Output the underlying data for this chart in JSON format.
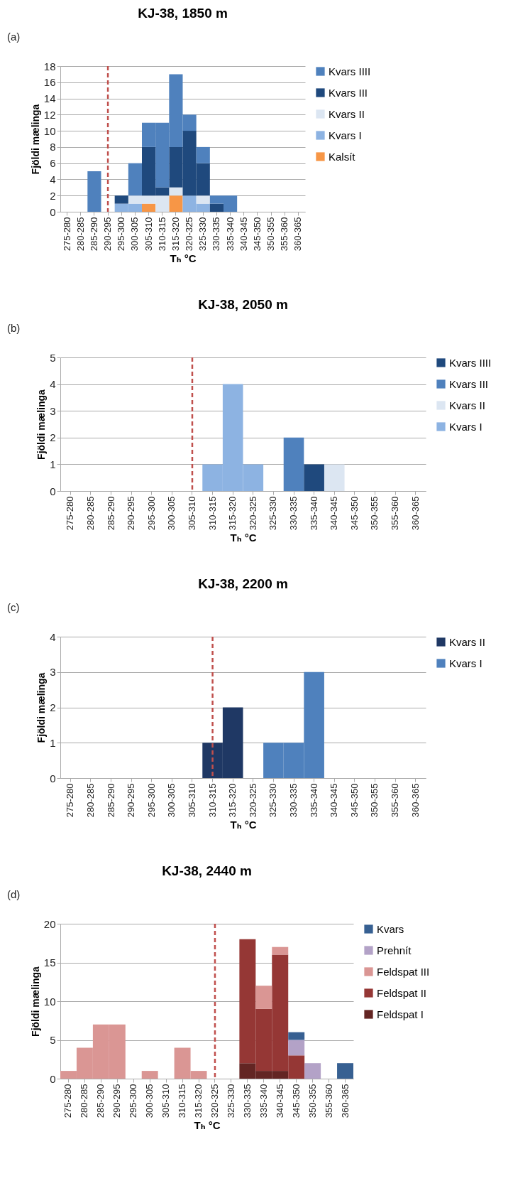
{
  "chart_data": [
    {
      "type": "bar",
      "title": "KJ-38, 1850 m",
      "xlabel": "Tₕ °C",
      "ylabel": "Fjöldi mælinga",
      "annotations": [
        "(a)"
      ],
      "stacked": true,
      "grid": "y",
      "legend": "right",
      "categories": [
        "275-280",
        "280-285",
        "285-290",
        "290-295",
        "295-300",
        "300-305",
        "305-310",
        "310-315",
        "315-320",
        "320-325",
        "325-330",
        "330-335",
        "335-340",
        "340-345",
        "345-350",
        "350-355",
        "355-360",
        "360-365"
      ],
      "ylim": [
        0,
        18
      ],
      "yticks": [
        0,
        2,
        4,
        6,
        8,
        10,
        12,
        14,
        16,
        18
      ],
      "ref_lines": [
        {
          "axis": "x",
          "value": "290-295",
          "color": "#c0504d",
          "line_style": "dashed"
        }
      ],
      "series": [
        {
          "name": "Kalsít",
          "color": "#f79646",
          "values": [
            null,
            null,
            null,
            null,
            null,
            null,
            1,
            null,
            2,
            null,
            null,
            null,
            null,
            null,
            null,
            null,
            null,
            null
          ]
        },
        {
          "name": "Kvars I",
          "color": "#8db3e2",
          "values": [
            null,
            null,
            null,
            null,
            1,
            1,
            null,
            null,
            null,
            2,
            1,
            null,
            null,
            null,
            null,
            null,
            null,
            null
          ]
        },
        {
          "name": "Kvars II",
          "color": "#dce6f2",
          "values": [
            null,
            null,
            null,
            null,
            null,
            1,
            1,
            2,
            1,
            null,
            1,
            null,
            null,
            null,
            null,
            null,
            null,
            null
          ]
        },
        {
          "name": "Kvars III",
          "color": "#1f497d",
          "values": [
            null,
            null,
            null,
            null,
            1,
            null,
            6,
            1,
            5,
            8,
            4,
            1,
            null,
            null,
            null,
            null,
            null,
            null
          ]
        },
        {
          "name": "Kvars IIII",
          "color": "#4f81bd",
          "values": [
            null,
            null,
            5,
            null,
            null,
            4,
            3,
            8,
            9,
            2,
            2,
            1,
            2,
            null,
            null,
            null,
            null,
            null
          ]
        }
      ]
    },
    {
      "type": "bar",
      "title": "KJ-38, 2050 m",
      "xlabel": "Tₕ °C",
      "ylabel": "Fjöldi mælinga",
      "annotations": [
        "(b)"
      ],
      "stacked": true,
      "grid": "y",
      "legend": "right",
      "categories": [
        "275-280",
        "280-285",
        "285-290",
        "290-295",
        "295-300",
        "300-305",
        "305-310",
        "310-315",
        "315-320",
        "320-325",
        "325-330",
        "330-335",
        "335-340",
        "340-345",
        "345-350",
        "350-355",
        "355-360",
        "360-365"
      ],
      "ylim": [
        0,
        5
      ],
      "yticks": [
        0,
        1,
        2,
        3,
        4,
        5
      ],
      "ref_lines": [
        {
          "axis": "x",
          "value": "305-310",
          "color": "#c0504d",
          "line_style": "dashed"
        }
      ],
      "series": [
        {
          "name": "Kvars I",
          "color": "#8db3e2",
          "values": [
            null,
            null,
            null,
            null,
            null,
            null,
            null,
            1,
            4,
            1,
            null,
            null,
            null,
            null,
            null,
            null,
            null,
            null
          ]
        },
        {
          "name": "Kvars II",
          "color": "#dce6f2",
          "values": [
            null,
            null,
            null,
            null,
            null,
            null,
            null,
            null,
            null,
            null,
            null,
            null,
            null,
            1,
            null,
            null,
            null,
            null
          ]
        },
        {
          "name": "Kvars III",
          "color": "#4f81bd",
          "values": [
            null,
            null,
            null,
            null,
            null,
            null,
            null,
            null,
            null,
            null,
            null,
            2,
            null,
            null,
            null,
            null,
            null,
            null
          ]
        },
        {
          "name": "Kvars IIII",
          "color": "#1f497d",
          "values": [
            null,
            null,
            null,
            null,
            null,
            null,
            null,
            null,
            null,
            null,
            null,
            null,
            1,
            null,
            null,
            null,
            null,
            null
          ]
        }
      ]
    },
    {
      "type": "bar",
      "title": "KJ-38, 2200 m",
      "xlabel": "Tₕ °C",
      "ylabel": "Fjöldi mælinga",
      "annotations": [
        "(c)"
      ],
      "stacked": true,
      "grid": "y",
      "legend": "right",
      "categories": [
        "275-280",
        "280-285",
        "285-290",
        "290-295",
        "295-300",
        "300-305",
        "305-310",
        "310-315",
        "315-320",
        "320-325",
        "325-330",
        "330-335",
        "335-340",
        "340-345",
        "345-350",
        "350-355",
        "355-360",
        "360-365"
      ],
      "ylim": [
        0,
        4
      ],
      "yticks": [
        0,
        1,
        2,
        3,
        4
      ],
      "ref_lines": [
        {
          "axis": "x",
          "value": "310-315",
          "color": "#c0504d",
          "line_style": "dashed"
        }
      ],
      "series": [
        {
          "name": "Kvars I",
          "color": "#4f81bd",
          "values": [
            null,
            null,
            null,
            null,
            null,
            null,
            null,
            null,
            null,
            null,
            1,
            1,
            3,
            null,
            null,
            null,
            null,
            null
          ]
        },
        {
          "name": "Kvars II",
          "color": "#1f3864",
          "values": [
            null,
            null,
            null,
            null,
            null,
            null,
            null,
            1,
            2,
            null,
            null,
            null,
            null,
            null,
            null,
            null,
            null,
            null
          ]
        }
      ]
    },
    {
      "type": "bar",
      "title": "KJ-38, 2440 m",
      "xlabel": "Tₕ °C",
      "ylabel": "Fjöldi mælinga",
      "annotations": [
        "(d)"
      ],
      "stacked": true,
      "grid": "y",
      "legend": "right",
      "categories": [
        "275-280",
        "280-285",
        "285-290",
        "290-295",
        "295-300",
        "300-305",
        "305-310",
        "310-315",
        "315-320",
        "320-325",
        "325-330",
        "330-335",
        "335-340",
        "340-345",
        "345-350",
        "350-355",
        "355-360",
        "360-365"
      ],
      "ylim": [
        0,
        20
      ],
      "yticks": [
        0,
        5,
        10,
        15,
        20
      ],
      "ref_lines": [
        {
          "axis": "x",
          "value": "320-325",
          "color": "#c0504d",
          "line_style": "dashed"
        }
      ],
      "series": [
        {
          "name": "Feldspat I",
          "color": "#632523",
          "values": [
            null,
            null,
            null,
            null,
            null,
            null,
            null,
            null,
            null,
            null,
            null,
            2,
            1,
            1,
            null,
            null,
            null,
            null
          ]
        },
        {
          "name": "Feldspat II",
          "color": "#953735",
          "values": [
            null,
            null,
            null,
            null,
            null,
            null,
            null,
            null,
            null,
            null,
            null,
            16,
            8,
            15,
            3,
            null,
            null,
            null
          ]
        },
        {
          "name": "Feldspat III",
          "color": "#da9694",
          "values": [
            1,
            4,
            7,
            7,
            null,
            1,
            null,
            4,
            1,
            null,
            null,
            null,
            3,
            1,
            null,
            null,
            null,
            null
          ]
        },
        {
          "name": "Prehnít",
          "color": "#b3a2c7",
          "values": [
            null,
            null,
            null,
            null,
            null,
            null,
            null,
            null,
            null,
            null,
            null,
            null,
            null,
            null,
            2,
            2,
            null,
            null
          ]
        },
        {
          "name": "Kvars",
          "color": "#376092",
          "values": [
            null,
            null,
            null,
            null,
            null,
            null,
            null,
            null,
            null,
            null,
            null,
            null,
            null,
            null,
            1,
            null,
            null,
            2
          ]
        }
      ]
    }
  ]
}
